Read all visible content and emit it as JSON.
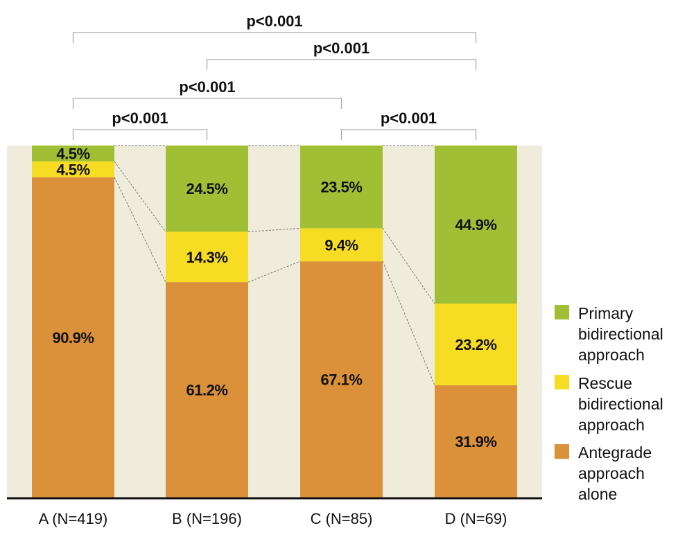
{
  "chart_data": {
    "type": "bar",
    "stacked": true,
    "categories": [
      "A (N=419)",
      "B (N=196)",
      "C (N=85)",
      "D (N=69)"
    ],
    "series": [
      {
        "name": "Antegrade approach alone",
        "legend_lines": [
          "Antegrade",
          "approach",
          "alone"
        ],
        "color": "#db913a",
        "values": [
          90.9,
          61.2,
          67.1,
          31.9
        ],
        "labels": [
          "90.9%",
          "61.2%",
          "67.1%",
          "31.9%"
        ]
      },
      {
        "name": "Rescue bidirectional approach",
        "legend_lines": [
          "Rescue",
          "bidirectional",
          "approach"
        ],
        "color": "#f7dc24",
        "values": [
          4.5,
          14.3,
          9.4,
          23.2
        ],
        "labels": [
          "4.5%",
          "14.3%",
          "9.4%",
          "23.2%"
        ]
      },
      {
        "name": "Primary bidirectional approach",
        "legend_lines": [
          "Primary",
          "bidirectional",
          "approach"
        ],
        "color": "#a0bf35",
        "values": [
          4.5,
          24.5,
          23.5,
          44.9
        ],
        "labels": [
          "4.5%",
          "24.5%",
          "23.5%",
          "44.9%"
        ]
      }
    ],
    "ylim": [
      0,
      100
    ],
    "grid": false,
    "legend_position": "right",
    "background_color": "#f0ecdc",
    "significance_brackets": [
      {
        "from": 0,
        "to": 3,
        "label": "p<0.001"
      },
      {
        "from": 1,
        "to": 3,
        "label": "p<0.001"
      },
      {
        "from": 0,
        "to": 2,
        "label": "p<0.001"
      },
      {
        "from": 0,
        "to": 1,
        "label": "p<0.001"
      },
      {
        "from": 2,
        "to": 3,
        "label": "p<0.001"
      }
    ]
  }
}
